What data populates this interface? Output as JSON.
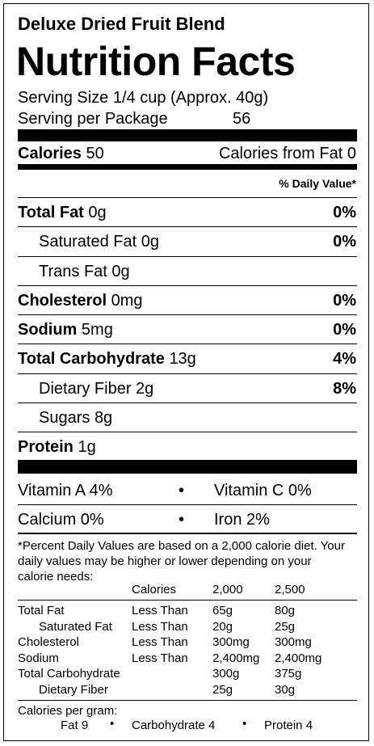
{
  "product": "Deluxe Dried Fruit Blend",
  "title": "Nutrition Facts",
  "serving_size": "Serving Size 1/4 cup (Approx. 40g)",
  "servings": {
    "label": "Serving per Package",
    "value": "56"
  },
  "calories": {
    "label": "Calories",
    "value": "50",
    "from_fat": "Calories from Fat 0"
  },
  "dv_header": "% Daily Value*",
  "nutrients": [
    {
      "name": "Total Fat",
      "amount": "0g",
      "dv": "0%",
      "bold": true,
      "indent": false
    },
    {
      "name": "Saturated Fat",
      "amount": "0g",
      "dv": "0%",
      "bold": false,
      "indent": true
    },
    {
      "name": "Trans Fat",
      "amount": "0g",
      "bold": false,
      "indent": true
    },
    {
      "name": "Cholesterol",
      "amount": "0mg",
      "dv": "0%",
      "bold": true,
      "indent": false
    },
    {
      "name": "Sodium",
      "amount": "5mg",
      "dv": "0%",
      "bold": true,
      "indent": false
    },
    {
      "name": "Total Carbohydrate",
      "amount": "13g",
      "dv": "4%",
      "bold": true,
      "indent": false
    },
    {
      "name": "Dietary Fiber",
      "amount": "2g",
      "dv": "8%",
      "bold": false,
      "indent": true
    },
    {
      "name": "Sugars",
      "amount": "8g",
      "bold": false,
      "indent": true
    },
    {
      "name": "Protein",
      "amount": "1g",
      "bold": true,
      "indent": false
    }
  ],
  "separator": "•",
  "vitamins": [
    [
      "Vitamin A 4%",
      "Vitamin C 0%"
    ],
    [
      "Calcium 0%",
      "Iron 2%"
    ]
  ],
  "footnote": "*Percent Daily Values are based on a 2,000 calorie diet. Your daily values may be higher or lower depending on your calorie needs:",
  "table": {
    "header": [
      "Calories",
      "2,000",
      "2,500"
    ],
    "rows": [
      {
        "name": "Total Fat",
        "indent": false,
        "limit": "Less Than",
        "v2000": "65g",
        "v2500": "80g"
      },
      {
        "name": "Saturated Fat",
        "indent": true,
        "limit": "Less Than",
        "v2000": "20g",
        "v2500": "25g"
      },
      {
        "name": "Cholesterol",
        "indent": false,
        "limit": "Less Than",
        "v2000": "300mg",
        "v2500": "300mg"
      },
      {
        "name": "Sodium",
        "indent": false,
        "limit": "Less Than",
        "v2000": "2,400mg",
        "v2500": "2,400mg"
      },
      {
        "name": "Total Carbohydrate",
        "indent": false,
        "v2000": "300g",
        "v2500": "375g"
      },
      {
        "name": "Dietary Fiber",
        "indent": true,
        "v2000": "25g",
        "v2500": "30g"
      }
    ]
  },
  "per_gram": {
    "label": "Calories per gram:",
    "items": [
      "Fat 9",
      "Carbohydrate 4",
      "Protein 4"
    ]
  }
}
